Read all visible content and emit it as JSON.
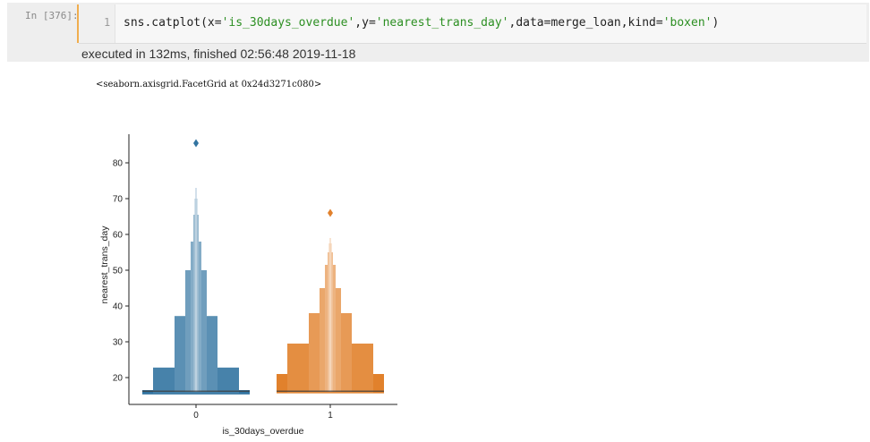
{
  "cell": {
    "prompt": "In  [376]:",
    "line_number": "1",
    "code_parts": [
      {
        "text": "sns.catplot(x=",
        "cls": ""
      },
      {
        "text": "'is_30days_overdue'",
        "cls": "s"
      },
      {
        "text": ",y=",
        "cls": ""
      },
      {
        "text": "'nearest_trans_day'",
        "cls": "s"
      },
      {
        "text": ",data=merge_loan,kind=",
        "cls": ""
      },
      {
        "text": "'boxen'",
        "cls": "s"
      },
      {
        "text": ")",
        "cls": ""
      }
    ],
    "exec_status": "executed in 132ms, finished 02:56:48 2019-11-18"
  },
  "output": {
    "repr": "<seaborn.axisgrid.FacetGrid at 0x24d3271c080>"
  },
  "chart_data": {
    "type": "boxen",
    "xlabel": "is_30days_overdue",
    "ylabel": "nearest_trans_day",
    "categories": [
      "0",
      "1"
    ],
    "yticks": [
      20,
      30,
      40,
      50,
      60,
      70,
      80
    ],
    "ylim": [
      12.5,
      88
    ],
    "colors": {
      "0": "#3274a1",
      "1": "#e1812c"
    },
    "series": [
      {
        "category": "0",
        "median": 16.2,
        "boxes": [
          {
            "lo": 15.3,
            "hi": 16.5,
            "width": 1.0
          },
          {
            "lo": 15.6,
            "hi": 22.8,
            "width": 0.8
          },
          {
            "lo": 16.0,
            "hi": 37.2,
            "width": 0.4
          },
          {
            "lo": 16.0,
            "hi": 50.0,
            "width": 0.2
          },
          {
            "lo": 16.0,
            "hi": 58.0,
            "width": 0.1
          },
          {
            "lo": 16.0,
            "hi": 65.5,
            "width": 0.05
          },
          {
            "lo": 16.0,
            "hi": 70.0,
            "width": 0.025
          },
          {
            "lo": 16.0,
            "hi": 73.0,
            "width": 0.012
          }
        ],
        "outliers": [
          85.5
        ]
      },
      {
        "category": "1",
        "median": 16.2,
        "boxes": [
          {
            "lo": 15.6,
            "hi": 21.0,
            "width": 1.0
          },
          {
            "lo": 15.8,
            "hi": 29.5,
            "width": 0.8
          },
          {
            "lo": 16.0,
            "hi": 38.0,
            "width": 0.4
          },
          {
            "lo": 16.0,
            "hi": 45.0,
            "width": 0.2
          },
          {
            "lo": 16.0,
            "hi": 51.5,
            "width": 0.1
          },
          {
            "lo": 16.0,
            "hi": 55.0,
            "width": 0.05
          },
          {
            "lo": 16.0,
            "hi": 57.5,
            "width": 0.025
          },
          {
            "lo": 16.0,
            "hi": 59.0,
            "width": 0.012
          }
        ],
        "outliers": [
          66.0
        ]
      }
    ]
  }
}
